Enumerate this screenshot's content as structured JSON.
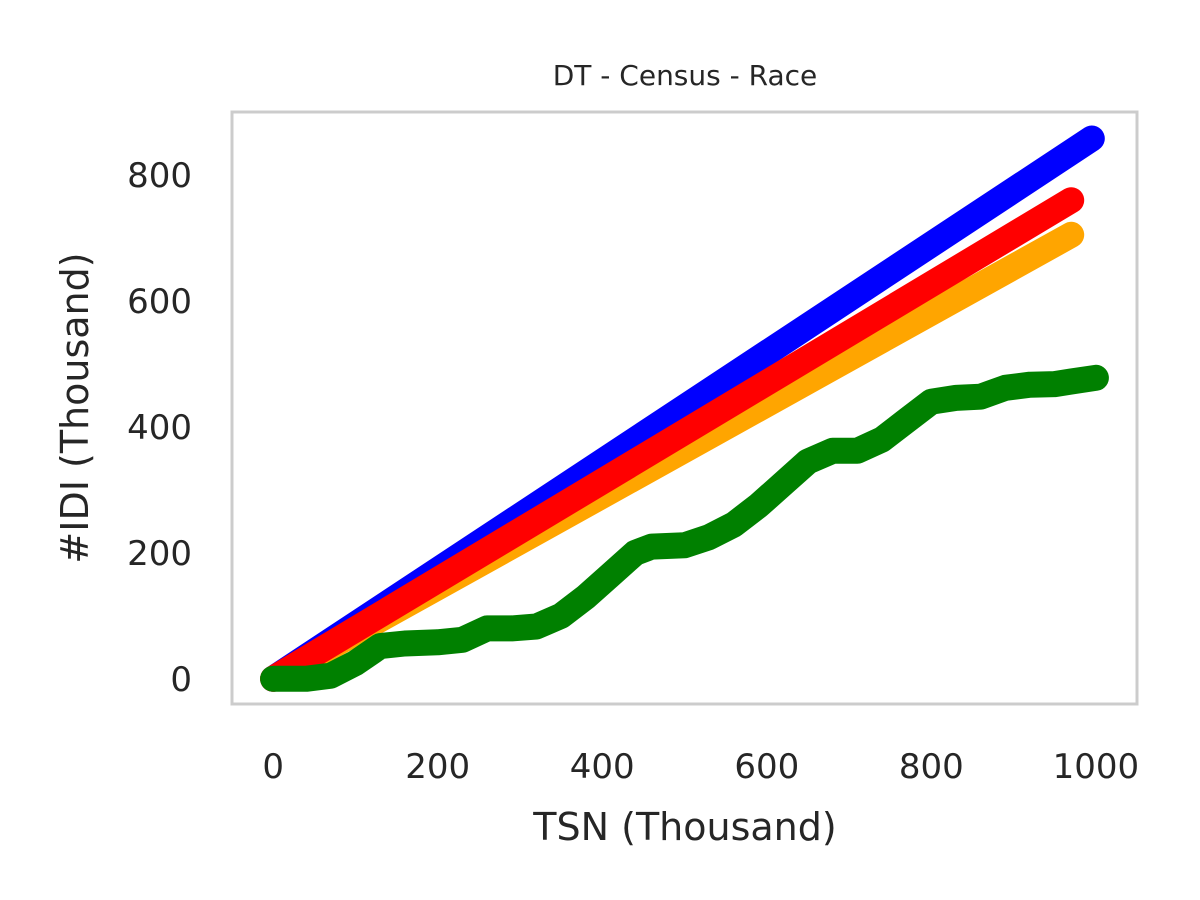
{
  "chart_data": {
    "type": "line",
    "title": "DT - Census - Race",
    "xlabel": "TSN (Thousand)",
    "ylabel": "#IDI (Thousand)",
    "xlim": [
      -50,
      1050
    ],
    "ylim": [
      -40,
      900
    ],
    "xticks": [
      0,
      200,
      400,
      600,
      800,
      1000
    ],
    "yticks": [
      0,
      200,
      400,
      600,
      800
    ],
    "grid": false,
    "legend": "none",
    "series": [
      {
        "color": "#0000ff",
        "points": [
          [
            0,
            0
          ],
          [
            995,
            858
          ]
        ]
      },
      {
        "color": "#ffa500",
        "points": [
          [
            0,
            0
          ],
          [
            970,
            705
          ]
        ]
      },
      {
        "color": "#ff0000",
        "points": [
          [
            0,
            0
          ],
          [
            970,
            760
          ]
        ]
      },
      {
        "color": "#008000",
        "points": [
          [
            0,
            0
          ],
          [
            40,
            0
          ],
          [
            70,
            5
          ],
          [
            100,
            25
          ],
          [
            130,
            52
          ],
          [
            160,
            56
          ],
          [
            200,
            58
          ],
          [
            230,
            62
          ],
          [
            260,
            80
          ],
          [
            290,
            80
          ],
          [
            320,
            83
          ],
          [
            350,
            100
          ],
          [
            380,
            130
          ],
          [
            410,
            165
          ],
          [
            440,
            200
          ],
          [
            460,
            210
          ],
          [
            500,
            212
          ],
          [
            530,
            225
          ],
          [
            560,
            245
          ],
          [
            590,
            275
          ],
          [
            620,
            310
          ],
          [
            650,
            345
          ],
          [
            680,
            362
          ],
          [
            710,
            362
          ],
          [
            740,
            380
          ],
          [
            770,
            410
          ],
          [
            800,
            440
          ],
          [
            830,
            446
          ],
          [
            860,
            448
          ],
          [
            890,
            462
          ],
          [
            920,
            467
          ],
          [
            950,
            468
          ],
          [
            970,
            472
          ],
          [
            1000,
            478
          ]
        ]
      }
    ]
  }
}
